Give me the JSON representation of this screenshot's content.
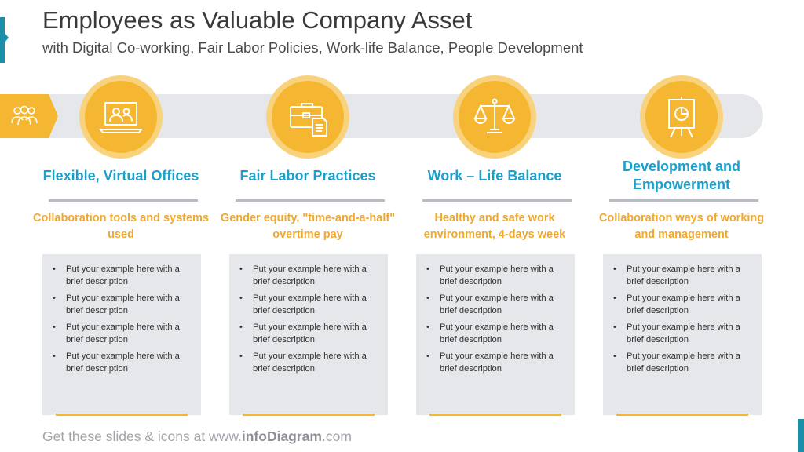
{
  "slide": {
    "title": "Employees as Valuable Company Asset",
    "subtitle": "with Digital Co-working, Fair Labor Policies, Work-life Balance, People Development"
  },
  "track_icon": "people-group-icon",
  "columns": [
    {
      "icon": "laptop-video-call-icon",
      "heading": "Flexible, Virtual Offices",
      "subheading": "Collaboration  tools and systems used",
      "bullets": [
        "Put your example here with a brief description",
        "Put your example here with a brief description",
        "Put your example here with a brief description",
        "Put your example here with a brief description"
      ]
    },
    {
      "icon": "toolbox-document-icon",
      "heading": "Fair Labor Practices",
      "subheading": "Gender equity, \"time-and-a-half\" overtime pay",
      "bullets": [
        "Put your example here with a brief description",
        "Put your example here with a brief description",
        "Put your example here with a brief description",
        "Put your example here with a brief description"
      ]
    },
    {
      "icon": "balance-scale-icon",
      "heading": "Work – Life Balance",
      "subheading": "Healthy and safe work environment, 4-days week",
      "bullets": [
        "Put your example here with a brief description",
        "Put your example here with a brief description",
        "Put your example here with a brief description",
        "Put your example here with a brief description"
      ]
    },
    {
      "icon": "presentation-board-icon",
      "heading": "Development and Empowerment",
      "subheading": "Collaboration  ways of working and management",
      "bullets": [
        "Put your example here with a brief description",
        "Put your example here with a brief description",
        "Put your example here with a brief description",
        "Put your example here with a brief description"
      ]
    }
  ],
  "footer": {
    "prefix": "Get these slides & icons at www.",
    "brand": "infoDiagram",
    "suffix": ".com"
  },
  "colors": {
    "accent": "#f5b731",
    "heading": "#1b9fcb",
    "subheading": "#f0a830",
    "panel": "#e5e7ea",
    "edge": "#1b8fa7"
  }
}
